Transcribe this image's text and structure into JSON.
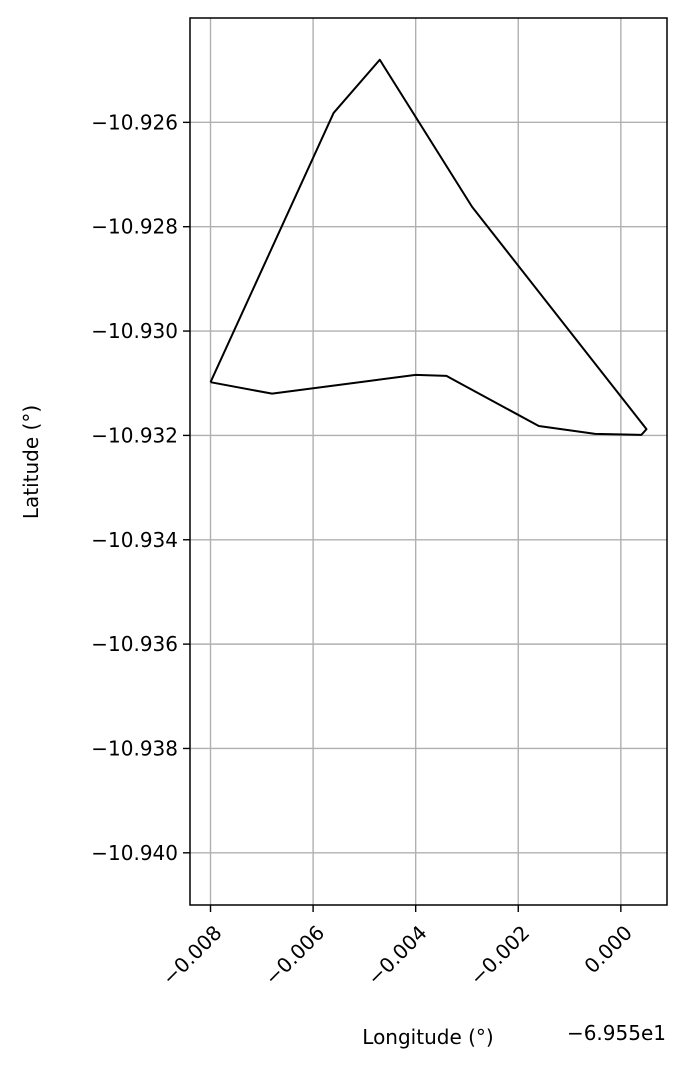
{
  "chart_data": {
    "type": "line",
    "title": "",
    "xlabel": "Longitude (°)",
    "ylabel": "Latitude (°)",
    "x_offset_label": "−6.955e1",
    "x_offset": -69.55,
    "xlim": [
      -0.0084,
      0.0009
    ],
    "ylim": [
      -10.941,
      -10.924
    ],
    "grid": true,
    "x_ticks": [
      -0.008,
      -0.006,
      -0.004,
      -0.002,
      0.0
    ],
    "x_tick_labels": [
      "−0.008",
      "−0.006",
      "−0.004",
      "−0.002",
      "0.000"
    ],
    "y_ticks": [
      -10.926,
      -10.928,
      -10.93,
      -10.932,
      -10.934,
      -10.936,
      -10.938,
      -10.94
    ],
    "y_tick_labels": [
      "−10.926",
      "−10.928",
      "−10.930",
      "−10.932",
      "−10.934",
      "−10.936",
      "−10.938",
      "−10.940"
    ],
    "colors": {
      "line": "#000000",
      "grid": "#b0b0b0",
      "frame": "#000000"
    },
    "series": [
      {
        "x": [
          -0.008,
          -0.0068,
          -0.004,
          -0.0034,
          -0.0016,
          -0.0005,
          0.0004,
          0.0005,
          -0.0029,
          -0.0047,
          -0.0056,
          -0.008
        ],
        "y": [
          -10.93098,
          -10.9312,
          -10.93084,
          -10.93086,
          -10.93182,
          -10.93197,
          -10.93199,
          -10.93188,
          -10.92762,
          -10.9248,
          -10.92582,
          -10.93098
        ]
      }
    ]
  }
}
